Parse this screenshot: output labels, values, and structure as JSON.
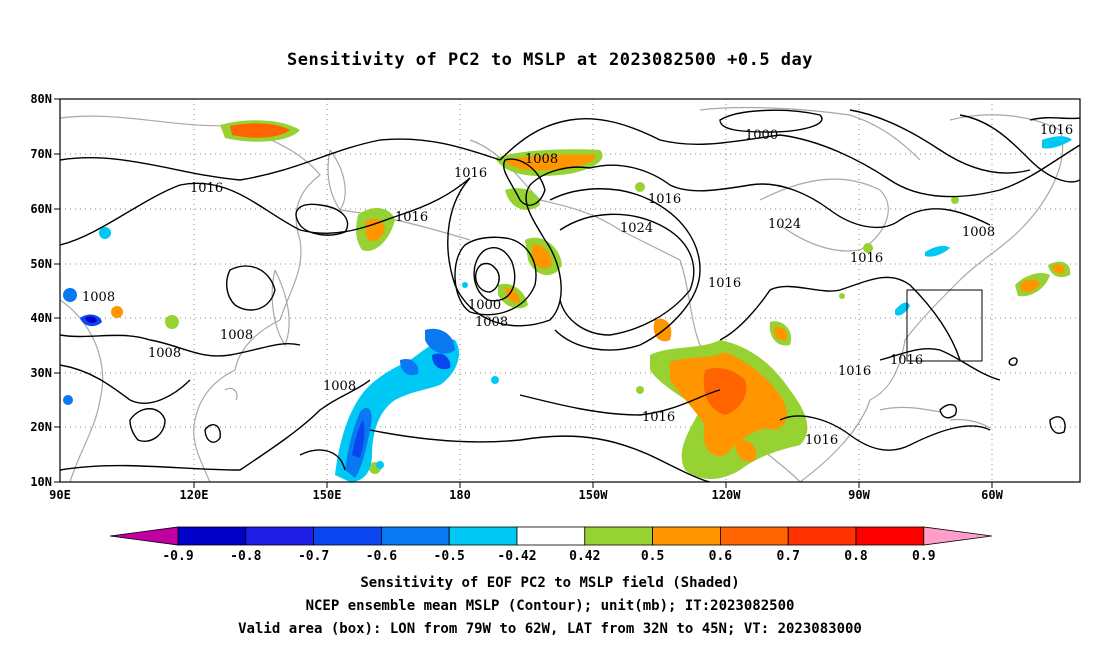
{
  "title": "Sensitivity of PC2 to MSLP at 2023082500 +0.5 day",
  "axes": {
    "lat_labels": [
      "80N",
      "70N",
      "60N",
      "50N",
      "40N",
      "30N",
      "20N",
      "10N"
    ],
    "lon_labels": [
      "90E",
      "120E",
      "150E",
      "180",
      "150W",
      "120W",
      "90W",
      "60W"
    ]
  },
  "colorbar": {
    "labels": [
      "-0.9",
      "-0.8",
      "-0.7",
      "-0.6",
      "-0.5",
      "-0.42",
      "0.42",
      "0.5",
      "0.6",
      "0.7",
      "0.8",
      "0.9"
    ],
    "colors": [
      "#c000a0",
      "#0000c8",
      "#1e1ee6",
      "#0a46f0",
      "#0a78f0",
      "#00c8f5",
      "#ffffff",
      "#96d232",
      "#ff9600",
      "#ff6400",
      "#ff3200",
      "#ff0000",
      "#ff9ec8"
    ]
  },
  "contour_labels": [
    "1016",
    "1016",
    "1008",
    "1016",
    "1016",
    "1024",
    "1000",
    "1024",
    "1016",
    "1008",
    "1008",
    "1008",
    "1008",
    "1000",
    "1008",
    "1016",
    "1016",
    "1016",
    "1016",
    "1016",
    "1008"
  ],
  "footer": {
    "line1": "Sensitivity of EOF PC2 to MSLP field (Shaded)",
    "line2": "NCEP ensemble mean MSLP (Contour); unit(mb); IT:2023082500",
    "line3": "Valid area (box): LON from 79W to 62W, LAT from 32N to 45N; VT: 2023083000"
  }
}
